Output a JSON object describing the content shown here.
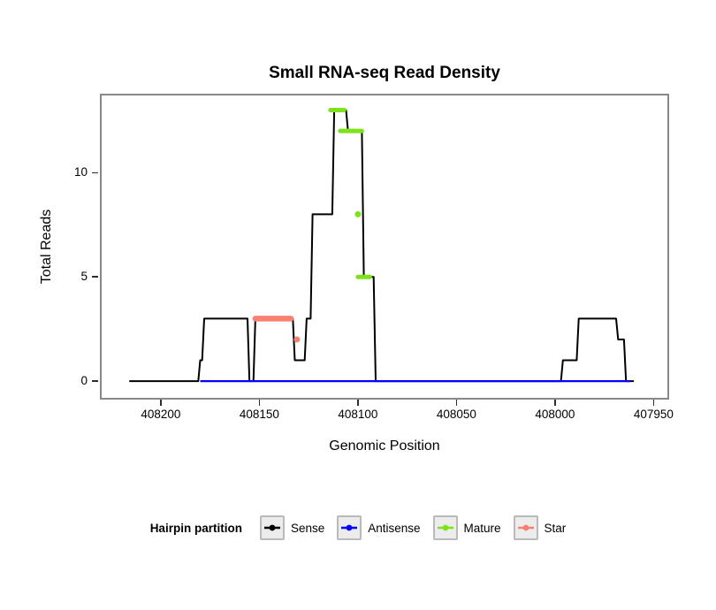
{
  "legend": {
    "title": "Hairpin partition",
    "items": [
      {
        "label": "Sense",
        "color": "#000000"
      },
      {
        "label": "Antisense",
        "color": "#0000ff"
      },
      {
        "label": "Mature",
        "color": "#7ce31d"
      },
      {
        "label": "Star",
        "color": "#fa8072"
      }
    ]
  },
  "colors": {
    "panel_border": "#888888",
    "tick": "#2e2e2e",
    "legend_key_bg": "#ececec",
    "legend_key_border": "#bababa",
    "sense": "#000000",
    "antisense": "#0000ff",
    "mature": "#7ce31d",
    "star": "#fa8072"
  },
  "chart_data": {
    "type": "line",
    "title": "Small RNA-seq Read Density",
    "xlabel": "Genomic Position",
    "ylabel": "Total Reads",
    "xlim": [
      408230,
      407943
    ],
    "ylim": [
      -0.8,
      13.7
    ],
    "x_reversed": true,
    "grid": false,
    "legend_position": "bottom",
    "x_ticks": [
      408200,
      408150,
      408100,
      408050,
      408000,
      407950
    ],
    "y_ticks": [
      0,
      5,
      10
    ],
    "series": [
      {
        "name": "Sense",
        "kind": "path",
        "color": "#000000",
        "width": 2,
        "points": [
          [
            408216,
            0
          ],
          [
            408181,
            0
          ],
          [
            408180,
            1
          ],
          [
            408179,
            1
          ],
          [
            408178,
            3
          ],
          [
            408156,
            3
          ],
          [
            408155,
            0
          ],
          [
            408153,
            0
          ],
          [
            408152,
            3
          ],
          [
            408133,
            3
          ],
          [
            408132,
            1
          ],
          [
            408127,
            1
          ],
          [
            408126,
            3
          ],
          [
            408124,
            3
          ],
          [
            408123,
            8
          ],
          [
            408113,
            8
          ],
          [
            408112,
            13
          ],
          [
            408106,
            13
          ],
          [
            408105,
            12
          ],
          [
            408098,
            12
          ],
          [
            408097,
            5
          ],
          [
            408092,
            5
          ],
          [
            408091,
            0
          ],
          [
            407997,
            0
          ],
          [
            407996,
            1
          ],
          [
            407989,
            1
          ],
          [
            407988,
            3
          ],
          [
            407969,
            3
          ],
          [
            407968,
            2
          ],
          [
            407965,
            2
          ],
          [
            407964,
            0
          ],
          [
            407960,
            0
          ]
        ]
      },
      {
        "name": "Antisense",
        "kind": "path",
        "color": "#0000ff",
        "width": 2.2,
        "points": [
          [
            408180,
            0
          ],
          [
            407962,
            0
          ]
        ]
      },
      {
        "name": "Star",
        "kind": "segments",
        "color": "#fa8072",
        "width": 6.5,
        "dot_r": 3.5,
        "segments": [
          [
            [
              408152,
              3
            ],
            [
              408134,
              3
            ]
          ]
        ],
        "dots": [
          [
            408131,
            2
          ]
        ]
      },
      {
        "name": "Mature",
        "kind": "segments",
        "color": "#7ce31d",
        "width": 5,
        "dot_r": 3.5,
        "segments": [
          [
            [
              408114,
              13
            ],
            [
              408107,
              13
            ]
          ],
          [
            [
              408109,
              12
            ],
            [
              408098,
              12
            ]
          ],
          [
            [
              408100,
              5
            ],
            [
              408094,
              5
            ]
          ]
        ],
        "dots": [
          [
            408100,
            8
          ]
        ]
      }
    ]
  }
}
